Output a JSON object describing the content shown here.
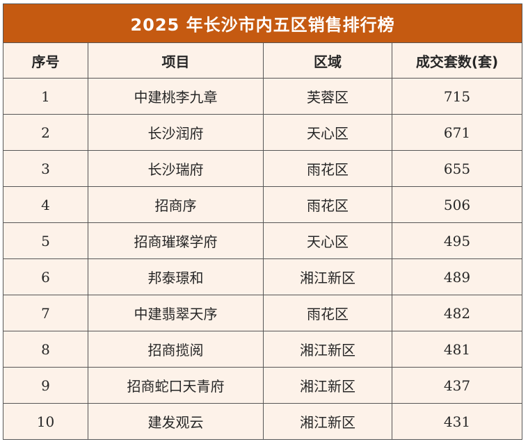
{
  "table": {
    "title": "2025 年长沙市内五区销售排行榜",
    "headers": [
      "序号",
      "项目",
      "区域",
      "成交套数(套)"
    ],
    "rows": [
      [
        "1",
        "中建桃李九章",
        "芙蓉区",
        "715"
      ],
      [
        "2",
        "长沙润府",
        "天心区",
        "671"
      ],
      [
        "3",
        "长沙瑞府",
        "雨花区",
        "655"
      ],
      [
        "4",
        "招商序",
        "雨花区",
        "506"
      ],
      [
        "5",
        "招商璀璨学府",
        "天心区",
        "495"
      ],
      [
        "6",
        "邦泰璟和",
        "湘江新区",
        "489"
      ],
      [
        "7",
        "中建翡翠天序",
        "雨花区",
        "482"
      ],
      [
        "8",
        "招商揽阅",
        "湘江新区",
        "481"
      ],
      [
        "9",
        "招商蛇口天青府",
        "湘江新区",
        "437"
      ],
      [
        "10",
        "建发观云",
        "湘江新区",
        "431"
      ]
    ]
  },
  "colors": {
    "title_background": "#c55a11",
    "title_text": "#ffffff",
    "cell_background": "#fdf2e9",
    "border": "#555555",
    "text": "#262626"
  }
}
